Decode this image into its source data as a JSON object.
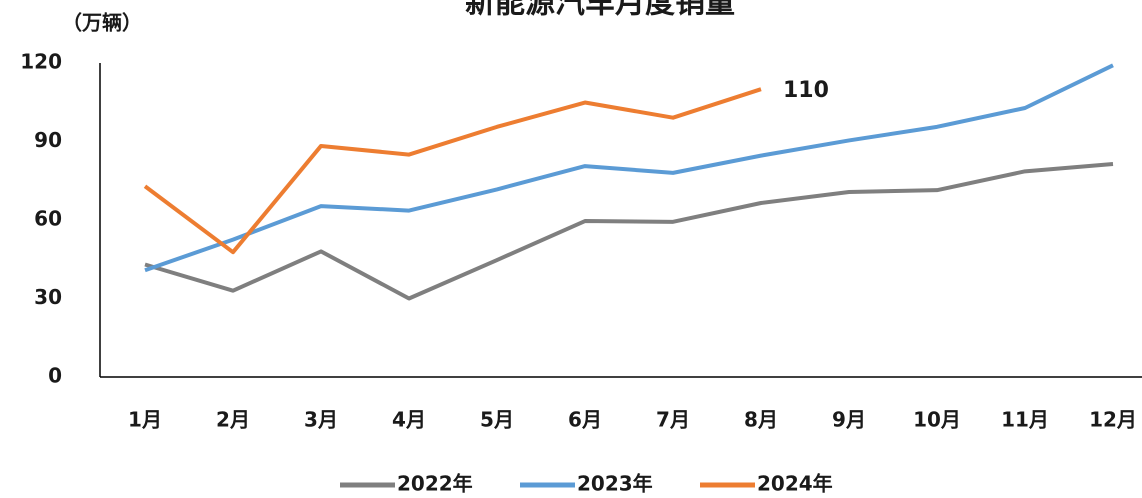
{
  "chart_data": {
    "type": "line",
    "title": "新能源汽车月度销量",
    "y_label": "（万辆）",
    "categories": [
      "1月",
      "2月",
      "3月",
      "4月",
      "5月",
      "6月",
      "7月",
      "8月",
      "9月",
      "10月",
      "11月",
      "12月"
    ],
    "series": [
      {
        "name": "2022年",
        "color": "#7f7f7f",
        "values": [
          43,
          33,
          48,
          30,
          44.7,
          59.6,
          59.3,
          66.5,
          70.7,
          71.4,
          78.6,
          81.4
        ]
      },
      {
        "name": "2023年",
        "color": "#5b9bd5",
        "values": [
          40.8,
          52.5,
          65.3,
          63.6,
          71.7,
          80.6,
          78,
          84.6,
          90.4,
          95.6,
          102.8,
          119.1
        ]
      },
      {
        "name": "2024年",
        "color": "#ed7d31",
        "values": [
          72.9,
          47.7,
          88.3,
          85,
          95.6,
          104.9,
          99.1,
          110,
          null,
          null,
          null,
          null
        ]
      }
    ],
    "labeled_point": {
      "series": 2,
      "index": 7
    },
    "ylim": [
      0,
      120
    ],
    "yticks": [
      0,
      30,
      60,
      90,
      120
    ],
    "grid": false,
    "legend": "bottom"
  }
}
